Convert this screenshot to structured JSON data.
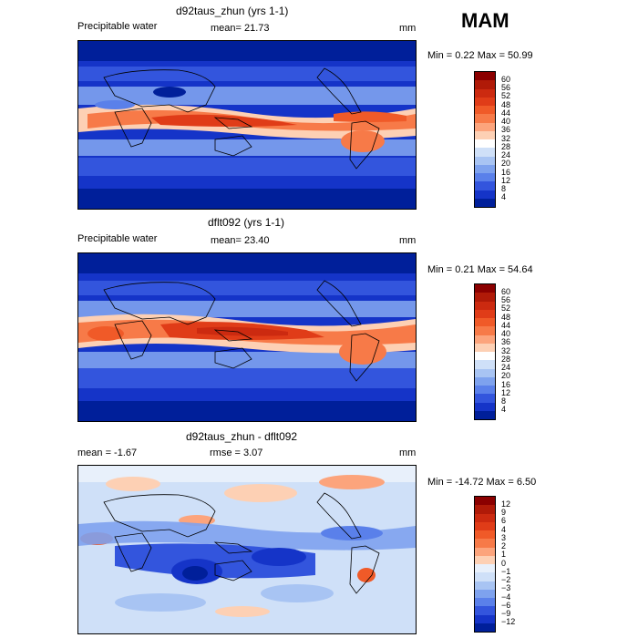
{
  "season": "MAM",
  "panels": [
    {
      "title": "d92taus_zhun (yrs 1-1)",
      "left_label": "Precipitable water",
      "center_label": "mean=   21.73",
      "units": "mm",
      "minmax": "Min =    0.22  Max =   50.99",
      "levels": [
        "60",
        "56",
        "52",
        "48",
        "44",
        "40",
        "36",
        "32",
        "28",
        "24",
        "20",
        "16",
        "12",
        "8",
        "4"
      ],
      "colors": [
        "#8b0000",
        "#b01a08",
        "#cc2a10",
        "#e03c18",
        "#f05a28",
        "#f77a48",
        "#fca47c",
        "#fdd0b4",
        "#ffffff",
        "#cfe0f8",
        "#a8c4f3",
        "#7ea2ee",
        "#5a80ea",
        "#3355dd",
        "#1534c8",
        "#001f9a"
      ]
    },
    {
      "title": "dflt092 (yrs 1-1)",
      "left_label": "Precipitable water",
      "center_label": "mean=   23.40",
      "units": "mm",
      "minmax": "Min =    0.21  Max =   54.64",
      "levels": [
        "60",
        "56",
        "52",
        "48",
        "44",
        "40",
        "36",
        "32",
        "28",
        "24",
        "20",
        "16",
        "12",
        "8",
        "4"
      ],
      "colors": [
        "#8b0000",
        "#b01a08",
        "#cc2a10",
        "#e03c18",
        "#f05a28",
        "#f77a48",
        "#fca47c",
        "#fdd0b4",
        "#ffffff",
        "#cfe0f8",
        "#a8c4f3",
        "#7ea2ee",
        "#5a80ea",
        "#3355dd",
        "#1534c8",
        "#001f9a"
      ]
    },
    {
      "title": "d92taus_zhun - dflt092",
      "left_label": "mean =   -1.67",
      "center_label": "rmse =    3.07",
      "units": "mm",
      "minmax": "Min = -14.72  Max =    6.50",
      "levels": [
        "12",
        "9",
        "6",
        "4",
        "3",
        "2",
        "1",
        "0",
        "−1",
        "−2",
        "−3",
        "−4",
        "−6",
        "−9",
        "−12"
      ],
      "colors": [
        "#8b0000",
        "#b01a08",
        "#cc2a10",
        "#e03c18",
        "#f05a28",
        "#f77a48",
        "#fca47c",
        "#fdd0b4",
        "#e8f0fb",
        "#cfe0f8",
        "#a8c4f3",
        "#7ea2ee",
        "#5a80ea",
        "#3355dd",
        "#1534c8",
        "#001f9a"
      ]
    }
  ]
}
